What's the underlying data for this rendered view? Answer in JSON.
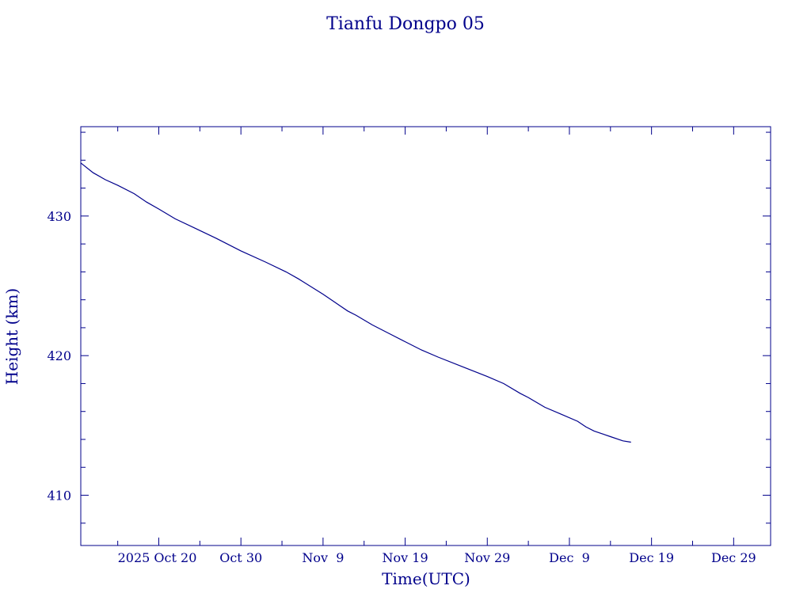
{
  "colors": {
    "ink": "#00008b",
    "background": "#ffffff"
  },
  "chart_data": {
    "type": "line",
    "title": "Tianfu Dongpo 05",
    "xlabel": "Time(UTC)",
    "ylabel": "Height (km)",
    "xlim": [
      "2025-10-10T12:00",
      "2026-01-02T12:00"
    ],
    "ylim": [
      406.4,
      436.4
    ],
    "x_tick_labels": [
      {
        "date": "2025-10-20",
        "label": "2025 Oct 20"
      },
      {
        "date": "2025-10-30",
        "label": "Oct 30"
      },
      {
        "date": "2025-11-09",
        "label": "Nov  9"
      },
      {
        "date": "2025-11-19",
        "label": "Nov 19"
      },
      {
        "date": "2025-11-29",
        "label": "Nov 29"
      },
      {
        "date": "2025-12-09",
        "label": "Dec  9"
      },
      {
        "date": "2025-12-19",
        "label": "Dec 19"
      },
      {
        "date": "2025-12-29",
        "label": "Dec 29"
      }
    ],
    "y_tick_labels": [
      {
        "value": 410,
        "label": "410"
      },
      {
        "value": 420,
        "label": "420"
      },
      {
        "value": 430,
        "label": "430"
      }
    ],
    "grid": false,
    "series": [
      {
        "x": [
          "2025-10-10T12:00",
          "2025-10-12T00:00",
          "2025-10-13T12:00",
          "2025-10-15T00:00",
          "2025-10-17T00:00",
          "2025-10-18T12:00",
          "2025-10-20T00:00",
          "2025-10-22T00:00",
          "2025-10-24T12:00",
          "2025-10-27T00:00",
          "2025-10-30T00:00",
          "2025-11-02T00:00",
          "2025-11-04T12:00",
          "2025-11-06T00:00",
          "2025-11-09T00:00",
          "2025-11-11T00:00",
          "2025-11-12T00:00",
          "2025-11-13T00:00",
          "2025-11-15T00:00",
          "2025-11-17T00:00",
          "2025-11-19T00:00",
          "2025-11-21T00:00",
          "2025-11-23T00:00",
          "2025-11-26T00:00",
          "2025-11-29T00:00",
          "2025-12-01T00:00",
          "2025-12-03T00:00",
          "2025-12-04T00:00",
          "2025-12-06T00:00",
          "2025-12-08T00:00",
          "2025-12-10T00:00",
          "2025-12-11T00:00",
          "2025-12-12T00:00",
          "2025-12-13T00:00",
          "2025-12-14T00:00",
          "2025-12-15T12:00",
          "2025-12-16T12:00"
        ],
        "y": [
          433.8,
          433.1,
          432.6,
          432.2,
          431.6,
          431.0,
          430.5,
          429.8,
          429.1,
          428.4,
          427.5,
          426.7,
          426.0,
          425.5,
          424.4,
          423.6,
          423.2,
          422.9,
          422.2,
          421.6,
          421.0,
          420.4,
          419.9,
          419.2,
          418.5,
          418.0,
          417.3,
          417.0,
          416.3,
          415.8,
          415.3,
          414.9,
          414.6,
          414.4,
          414.2,
          413.9,
          413.8
        ]
      }
    ]
  }
}
